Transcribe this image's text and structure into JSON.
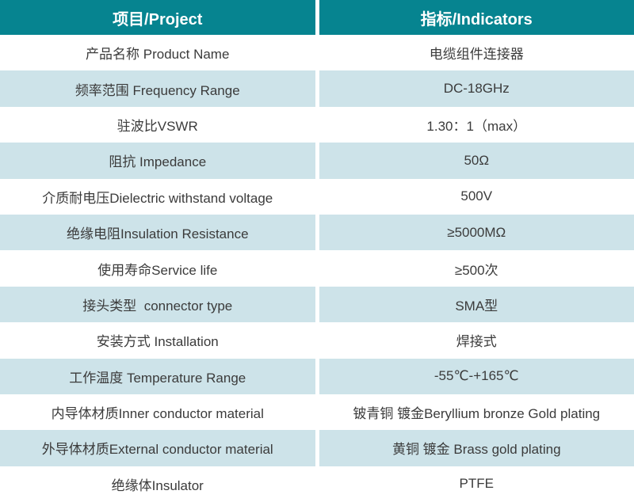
{
  "table": {
    "colors": {
      "header_bg": "#068490",
      "header_text": "#ffffff",
      "row_bg": "#ffffff",
      "row_alt_bg": "#cde3e9",
      "body_text": "#3b3b3b"
    },
    "headers": [
      {
        "label": "项目/Project"
      },
      {
        "label": "指标/Indicators"
      }
    ],
    "rows": [
      {
        "project": "产品名称 Product Name",
        "indicator": "电缆组件连接器"
      },
      {
        "project": "频率范围 Frequency Range",
        "indicator": "DC-18GHz"
      },
      {
        "project": "驻波比VSWR",
        "indicator": "1.30：1（max）"
      },
      {
        "project": "阻抗 Impedance",
        "indicator": "50Ω"
      },
      {
        "project": "介质耐电压Dielectric withstand voltage",
        "indicator": "500V"
      },
      {
        "project": "绝缘电阻Insulation Resistance",
        "indicator": "≥5000MΩ"
      },
      {
        "project": "使用寿命Service life",
        "indicator": "≥500次"
      },
      {
        "project": "接头类型  connector type",
        "indicator": "SMA型"
      },
      {
        "project": "安装方式 Installation",
        "indicator": "焊接式"
      },
      {
        "project": "工作温度 Temperature Range",
        "indicator": "-55℃-+165℃"
      },
      {
        "project": "内导体材质Inner conductor material",
        "indicator": "铍青铜 镀金Beryllium bronze Gold plating"
      },
      {
        "project": "外导体材质External conductor material",
        "indicator": "黄铜 镀金 Brass gold plating"
      },
      {
        "project": "绝缘体Insulator",
        "indicator": "PTFE"
      }
    ]
  }
}
